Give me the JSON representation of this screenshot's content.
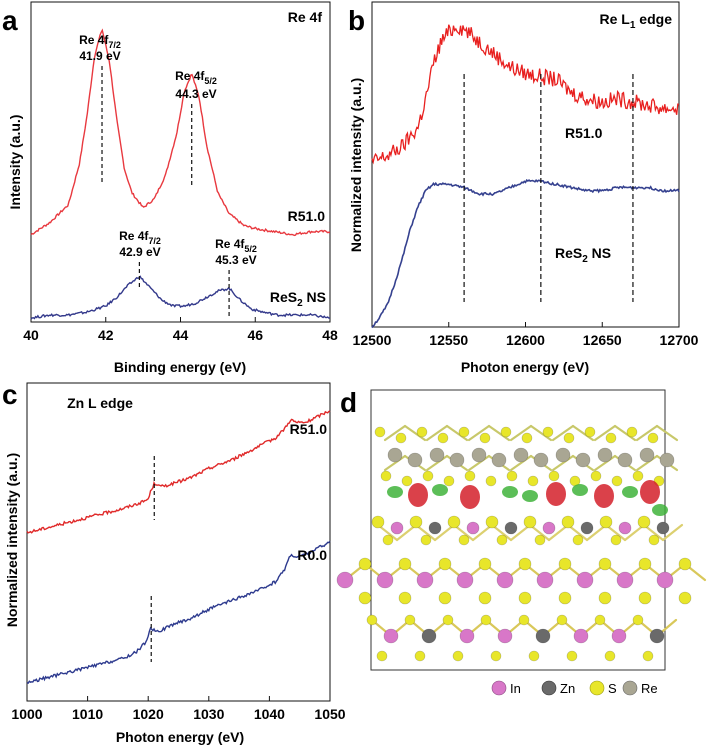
{
  "chart_data": [
    {
      "type": "line",
      "panel": "a",
      "title": "Re 4f",
      "xlabel": "Binding energy (eV)",
      "ylabel": "Intensity (a.u.)",
      "xlim": [
        40,
        48
      ],
      "xticks": [
        "40",
        "42",
        "44",
        "46",
        "48"
      ],
      "series": [
        {
          "name": "R51.0",
          "color": "#e8393f",
          "x": [
            40.0,
            40.5,
            41.0,
            41.3,
            41.5,
            41.7,
            41.9,
            42.1,
            42.3,
            42.5,
            42.7,
            43.0,
            43.3,
            43.6,
            43.9,
            44.1,
            44.3,
            44.5,
            44.7,
            45.0,
            45.3,
            45.7,
            46.0,
            46.5,
            47.0,
            47.5,
            48.0
          ],
          "y": [
            0.28,
            0.32,
            0.38,
            0.52,
            0.68,
            0.88,
            0.97,
            0.86,
            0.66,
            0.5,
            0.42,
            0.37,
            0.4,
            0.48,
            0.62,
            0.76,
            0.82,
            0.74,
            0.58,
            0.42,
            0.35,
            0.31,
            0.3,
            0.29,
            0.28,
            0.29,
            0.29
          ]
        },
        {
          "name": "ReS2 NS",
          "color": "#33398b",
          "x": [
            40.0,
            40.5,
            41.0,
            41.5,
            42.0,
            42.3,
            42.6,
            42.9,
            43.2,
            43.5,
            43.8,
            44.1,
            44.4,
            44.7,
            45.0,
            45.3,
            45.6,
            45.9,
            46.2,
            46.6,
            47.0,
            47.5,
            48.0
          ],
          "y": [
            0.0,
            0.01,
            0.01,
            0.02,
            0.04,
            0.07,
            0.11,
            0.14,
            0.1,
            0.06,
            0.04,
            0.04,
            0.05,
            0.07,
            0.09,
            0.1,
            0.06,
            0.03,
            0.02,
            0.01,
            0.01,
            0.01,
            0.0
          ]
        }
      ],
      "annotations": [
        {
          "text_main": "Re 4f",
          "sub": "7/2",
          "value": "41.9 eV",
          "x": 41.9
        },
        {
          "text_main": "Re 4f",
          "sub": "5/2",
          "value": "44.3 eV",
          "x": 44.3
        },
        {
          "text_main": "Re 4f",
          "sub": "7/2",
          "value": "42.9 eV",
          "x": 42.9
        },
        {
          "text_main": "Re 4f",
          "sub": "5/2",
          "value": "45.3 eV",
          "x": 45.3
        }
      ],
      "series_labels": [
        "R51.0",
        "ReS",
        "2",
        " NS"
      ]
    },
    {
      "type": "line",
      "panel": "b",
      "title_main": "Re L",
      "title_sub": "1",
      "title_tail": " edge",
      "xlabel": "Photon energy (eV)",
      "ylabel": "Normalized intensity (a.u.)",
      "xlim": [
        12500,
        12700
      ],
      "xticks": [
        "12500",
        "12550",
        "12600",
        "12650",
        "12700"
      ],
      "series": [
        {
          "name": "R51.0",
          "color": "#e8201f",
          "x": [
            12500,
            12510,
            12520,
            12530,
            12535,
            12540,
            12545,
            12550,
            12555,
            12560,
            12570,
            12580,
            12590,
            12600,
            12610,
            12620,
            12630,
            12640,
            12650,
            12660,
            12670,
            12680,
            12690,
            12700
          ],
          "y": [
            0.52,
            0.54,
            0.57,
            0.63,
            0.72,
            0.83,
            0.9,
            0.93,
            0.95,
            0.94,
            0.9,
            0.86,
            0.82,
            0.8,
            0.79,
            0.78,
            0.74,
            0.72,
            0.71,
            0.72,
            0.71,
            0.7,
            0.69,
            0.69
          ]
        },
        {
          "name": "ReS2 NS",
          "color": "#35418f",
          "x": [
            12500,
            12505,
            12510,
            12515,
            12520,
            12525,
            12530,
            12535,
            12540,
            12545,
            12550,
            12560,
            12570,
            12580,
            12590,
            12600,
            12610,
            12620,
            12630,
            12640,
            12650,
            12660,
            12670,
            12680,
            12690,
            12700
          ],
          "y": [
            0.0,
            0.03,
            0.07,
            0.14,
            0.22,
            0.31,
            0.38,
            0.43,
            0.45,
            0.45,
            0.45,
            0.44,
            0.42,
            0.42,
            0.44,
            0.46,
            0.46,
            0.45,
            0.44,
            0.43,
            0.43,
            0.44,
            0.44,
            0.44,
            0.43,
            0.43
          ]
        }
      ],
      "vlines": [
        12560,
        12610,
        12670
      ],
      "series_labels": [
        "R51.0",
        "ReS",
        "2",
        " NS"
      ]
    },
    {
      "type": "line",
      "panel": "c",
      "title": "Zn L edge",
      "xlabel": "Photon energy (eV)",
      "ylabel": "Normalized intensity (a.u.)",
      "xlim": [
        1000,
        1050
      ],
      "xticks": [
        "1000",
        "1010",
        "1020",
        "1030",
        "1040",
        "1050"
      ],
      "series": [
        {
          "name": "R51.0",
          "color": "#e02a2a",
          "x": [
            1000,
            1004,
            1008,
            1012,
            1016,
            1019,
            1020,
            1020.5,
            1021,
            1021.5,
            1022,
            1024,
            1027,
            1030,
            1034,
            1038,
            1041,
            1042.5,
            1043.5,
            1044.5,
            1046,
            1048,
            1050
          ],
          "y": [
            0.54,
            0.56,
            0.58,
            0.6,
            0.62,
            0.64,
            0.65,
            0.68,
            0.7,
            0.7,
            0.69,
            0.7,
            0.72,
            0.75,
            0.78,
            0.82,
            0.85,
            0.88,
            0.91,
            0.9,
            0.9,
            0.92,
            0.94
          ]
        },
        {
          "name": "R0.0",
          "color": "#2d3a8e",
          "x": [
            1000,
            1004,
            1008,
            1012,
            1016,
            1018,
            1019.5,
            1020.5,
            1021,
            1022,
            1024,
            1027,
            1030,
            1034,
            1038,
            1041,
            1042.5,
            1043.5,
            1044.5,
            1046,
            1048,
            1050
          ],
          "y": [
            0.05,
            0.07,
            0.09,
            0.11,
            0.13,
            0.15,
            0.18,
            0.23,
            0.22,
            0.22,
            0.24,
            0.26,
            0.29,
            0.32,
            0.35,
            0.38,
            0.42,
            0.47,
            0.46,
            0.47,
            0.49,
            0.51
          ]
        }
      ],
      "vlines": [
        1021,
        1020.5
      ],
      "series_labels": [
        "R51.0",
        "R0.0"
      ]
    }
  ],
  "panel_letters": [
    "a",
    "b",
    "c",
    "d"
  ],
  "panel_d": {
    "legend": [
      "In",
      "Zn",
      "S",
      "Re"
    ],
    "colors": {
      "In": "#d877c8",
      "Zn": "#6a6a6a",
      "S": "#e8e62a",
      "Re": "#a9a693",
      "charge_red": "#d4202a",
      "charge_green": "#3fb33b"
    }
  }
}
